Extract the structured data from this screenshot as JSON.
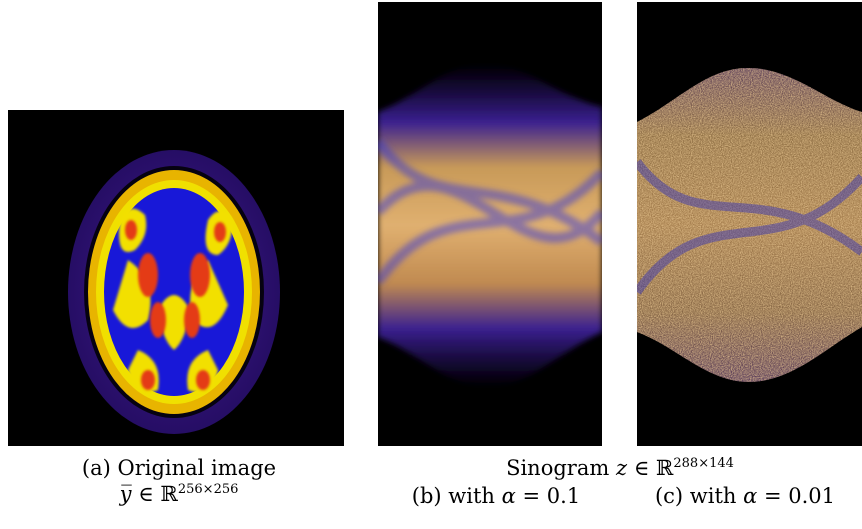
{
  "figure": {
    "panel_a": {
      "caption_line1": "(a) Original image",
      "caption_line2_symbol": "y̅",
      "caption_line2_in": "∈ ℝ",
      "caption_line2_exp": "256×256"
    },
    "sinogram_header": {
      "text": "Sinogram",
      "symbol": "z",
      "in": "∈ ℝ",
      "exp": "288×144"
    },
    "panel_b": {
      "caption_prefix": "(b) with",
      "symbol": "α",
      "value": "= 0.1"
    },
    "panel_c": {
      "caption_prefix": "(c) with",
      "symbol": "α",
      "value": "= 0.01"
    }
  },
  "colors": {
    "background": "#000000",
    "brain_outer": "#3a1a8c",
    "brain_blue": "#1a1adc",
    "brain_yellow": "#f2e600",
    "brain_red": "#e83a12",
    "sinogram_orange": "#d8a050",
    "sinogram_blue": "#3030c0"
  }
}
